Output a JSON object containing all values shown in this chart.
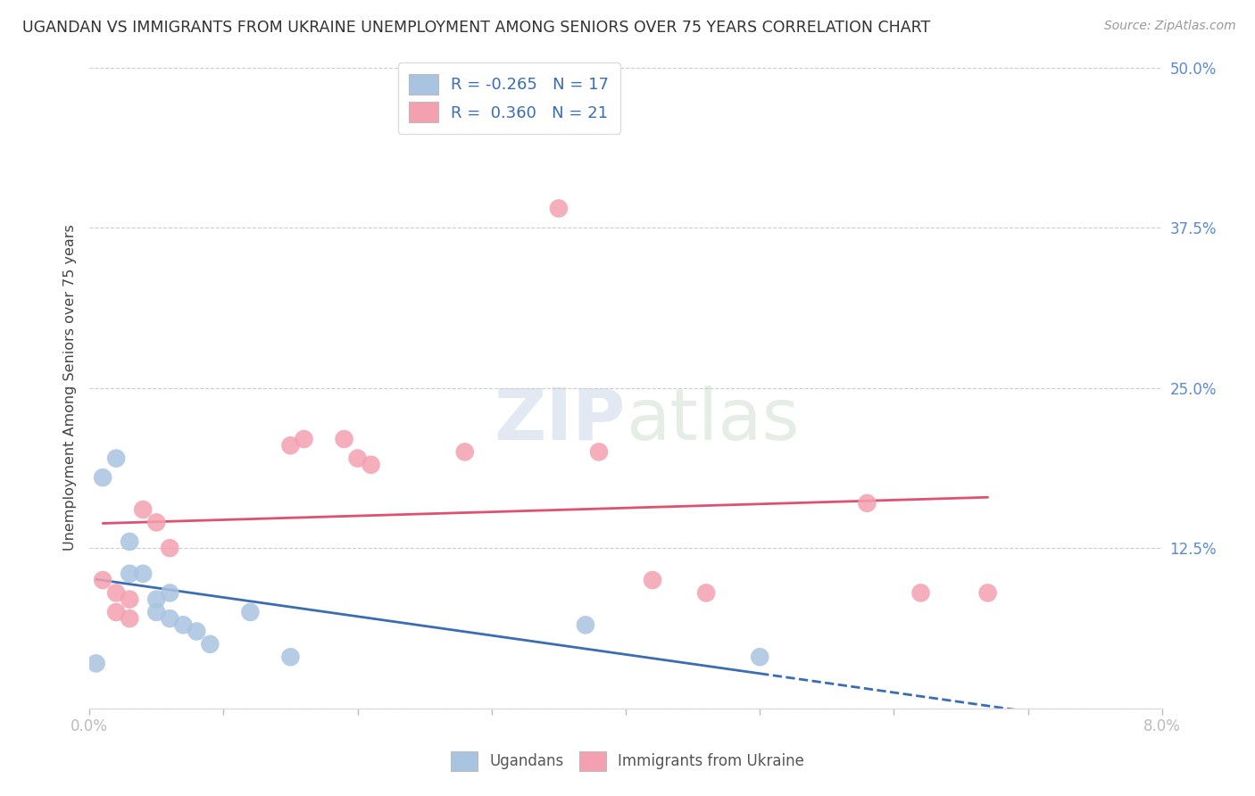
{
  "title": "UGANDAN VS IMMIGRANTS FROM UKRAINE UNEMPLOYMENT AMONG SENIORS OVER 75 YEARS CORRELATION CHART",
  "source": "Source: ZipAtlas.com",
  "ylabel": "Unemployment Among Seniors over 75 years",
  "xlim": [
    0.0,
    0.08
  ],
  "ylim": [
    0.0,
    0.5
  ],
  "yticks": [
    0.0,
    0.125,
    0.25,
    0.375,
    0.5
  ],
  "ytick_labels": [
    "",
    "12.5%",
    "25.0%",
    "37.5%",
    "50.0%"
  ],
  "xticks": [
    0.0,
    0.01,
    0.02,
    0.03,
    0.04,
    0.05,
    0.06,
    0.07,
    0.08
  ],
  "ugandan_x": [
    0.0005,
    0.001,
    0.002,
    0.003,
    0.003,
    0.004,
    0.005,
    0.005,
    0.006,
    0.006,
    0.007,
    0.008,
    0.009,
    0.012,
    0.015,
    0.037,
    0.05
  ],
  "ugandan_y": [
    0.035,
    0.18,
    0.195,
    0.13,
    0.105,
    0.105,
    0.085,
    0.075,
    0.09,
    0.07,
    0.065,
    0.06,
    0.05,
    0.075,
    0.04,
    0.065,
    0.04
  ],
  "ukraine_x": [
    0.001,
    0.002,
    0.002,
    0.003,
    0.003,
    0.004,
    0.005,
    0.006,
    0.015,
    0.016,
    0.019,
    0.02,
    0.021,
    0.028,
    0.035,
    0.038,
    0.042,
    0.046,
    0.058,
    0.062,
    0.067
  ],
  "ukraine_y": [
    0.1,
    0.09,
    0.075,
    0.085,
    0.07,
    0.155,
    0.145,
    0.125,
    0.205,
    0.21,
    0.21,
    0.195,
    0.19,
    0.2,
    0.39,
    0.2,
    0.1,
    0.09,
    0.16,
    0.09,
    0.09
  ],
  "ugandan_color": "#a8c4e0",
  "ukraine_color": "#f4a0b0",
  "ugandan_line_color": "#3a6db5",
  "ukraine_line_color": "#e05070",
  "legend_label_ugandan": "Ugandans",
  "legend_label_ukraine": "Immigrants from Ukraine",
  "r_ugandan": -0.265,
  "n_ugandan": 17,
  "r_ukraine": 0.36,
  "n_ukraine": 21,
  "watermark_zip": "ZIP",
  "watermark_atlas": "atlas",
  "background_color": "#ffffff",
  "grid_color": "#cccccc"
}
